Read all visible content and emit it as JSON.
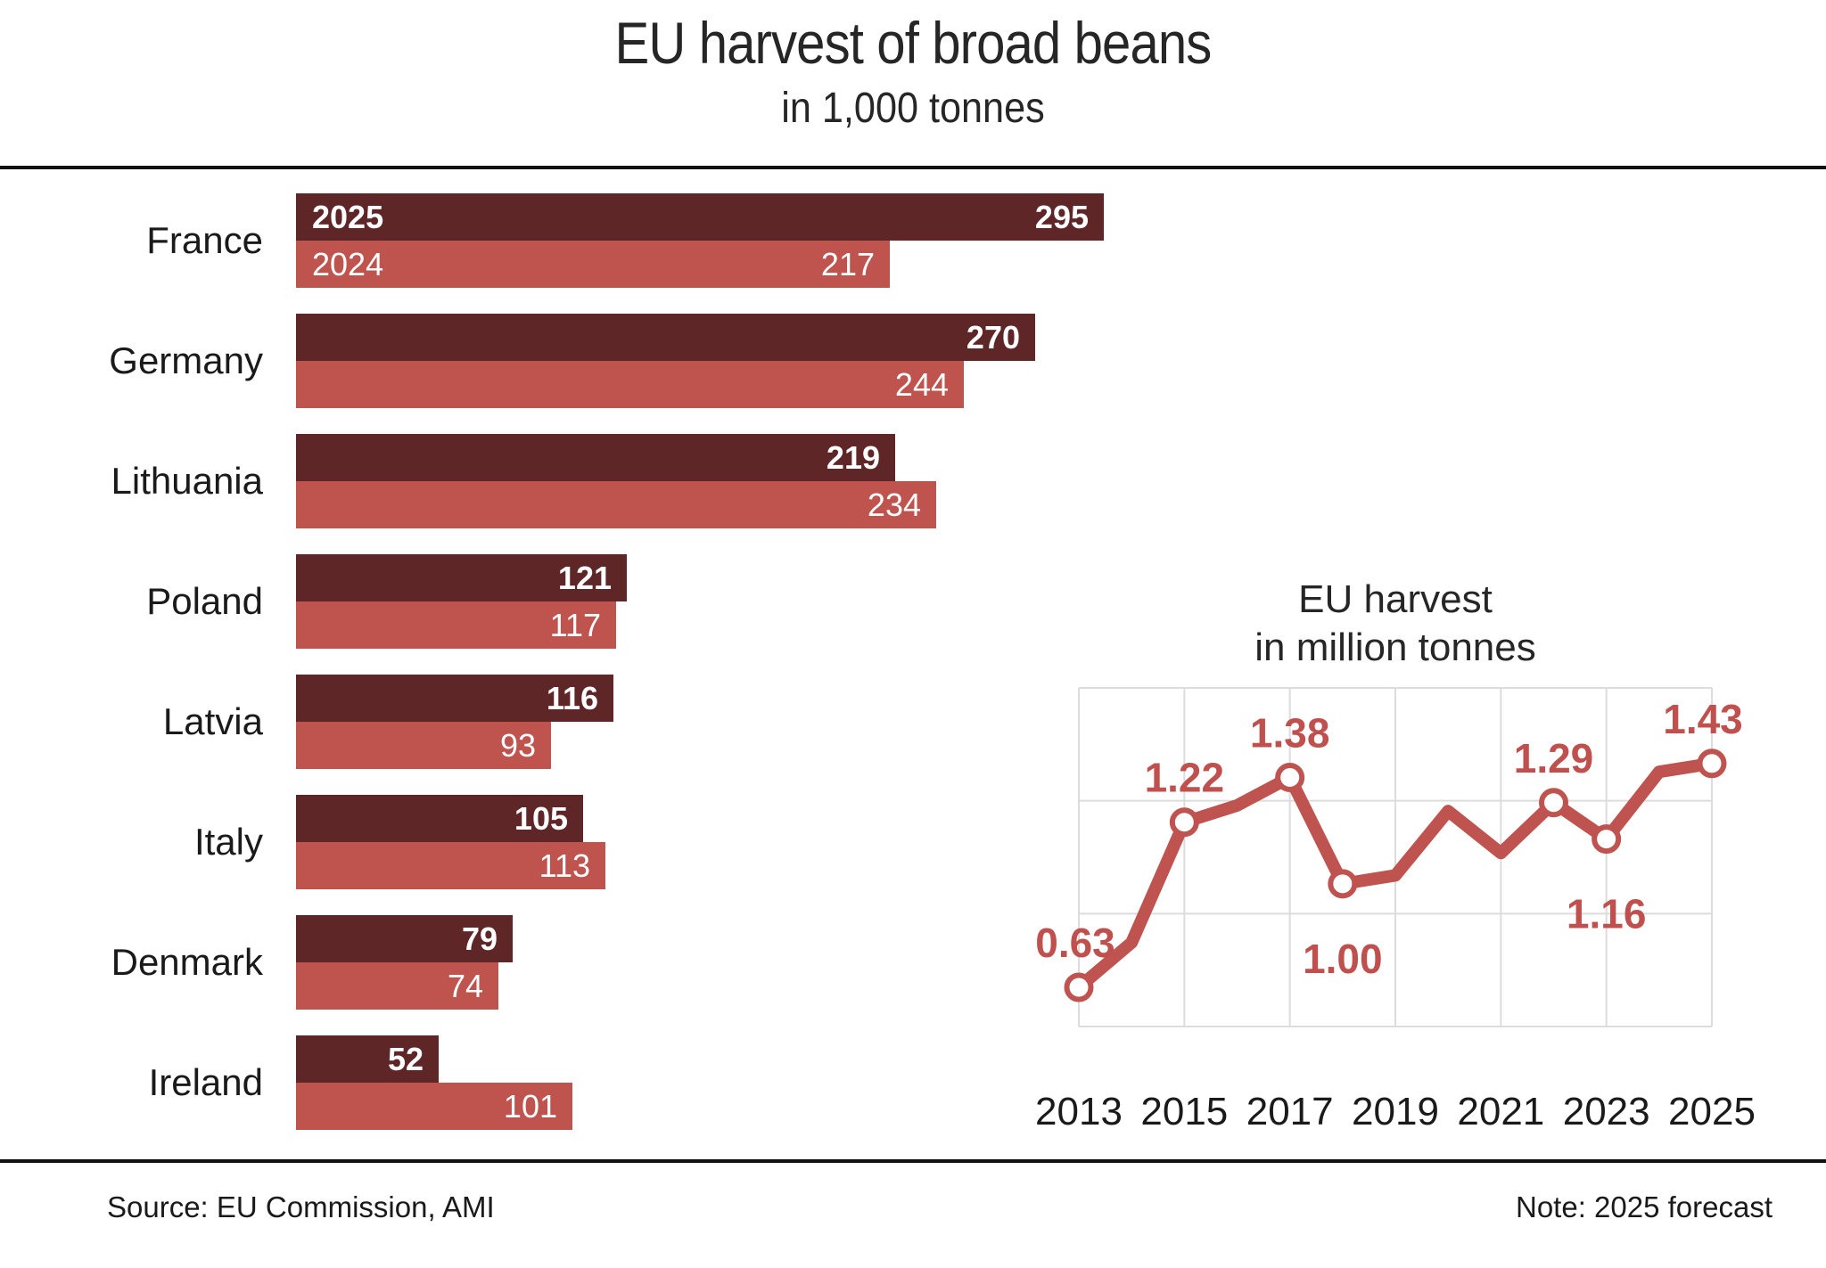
{
  "title": "EU harvest of broad beans",
  "subtitle": "in 1,000 tonnes",
  "footer": {
    "source": "Source: EU Commission, AMI",
    "note": "Note: 2025 forecast"
  },
  "colors": {
    "background": "#ffffff",
    "bar_2025": "#5f2628",
    "bar_2024": "#bf534e",
    "line": "#bf534f",
    "label_red": "#c0504d",
    "grid": "#dcdcdc",
    "text": "#1a1a1a",
    "value_text": "#ffffff",
    "rule": "#111111"
  },
  "chart_data": [
    {
      "type": "bar",
      "orientation": "horizontal",
      "title": "EU harvest of broad beans",
      "subtitle": "in 1,000 tonnes",
      "unit": "1,000 tonnes",
      "categories": [
        "France",
        "Germany",
        "Lithuania",
        "Poland",
        "Latvia",
        "Italy",
        "Denmark",
        "Ireland"
      ],
      "series": [
        {
          "name": "2025",
          "values": [
            295,
            270,
            219,
            121,
            116,
            105,
            79,
            52
          ]
        },
        {
          "name": "2024",
          "values": [
            217,
            244,
            234,
            117,
            93,
            113,
            74,
            101
          ]
        }
      ],
      "value_labels": "inside-end",
      "legend": "in-first-bars"
    },
    {
      "type": "line",
      "title": "EU harvest",
      "subtitle": "in million tonnes",
      "x": [
        2013,
        2014,
        2015,
        2016,
        2017,
        2018,
        2019,
        2020,
        2021,
        2022,
        2023,
        2024,
        2025
      ],
      "values": [
        0.63,
        0.79,
        1.22,
        1.28,
        1.38,
        1.0,
        1.03,
        1.26,
        1.11,
        1.29,
        1.16,
        1.4,
        1.43
      ],
      "marker_years": [
        2013,
        2015,
        2017,
        2018,
        2022,
        2023,
        2025
      ],
      "labeled_points": [
        {
          "year": 2013,
          "text": "0.63",
          "position": "above"
        },
        {
          "year": 2015,
          "text": "1.22",
          "position": "above"
        },
        {
          "year": 2017,
          "text": "1.38",
          "position": "above"
        },
        {
          "year": 2018,
          "text": "1.00",
          "position": "below"
        },
        {
          "year": 2022,
          "text": "1.29",
          "position": "above"
        },
        {
          "year": 2023,
          "text": "1.16",
          "position": "below"
        },
        {
          "year": 2025,
          "text": "1.43",
          "position": "above"
        }
      ],
      "x_tick_labels": [
        "2013",
        "2015",
        "2017",
        "2019",
        "2021",
        "2023",
        "2025"
      ],
      "ylim": [
        0.49,
        1.7
      ],
      "grid": true,
      "legend": "none"
    }
  ]
}
